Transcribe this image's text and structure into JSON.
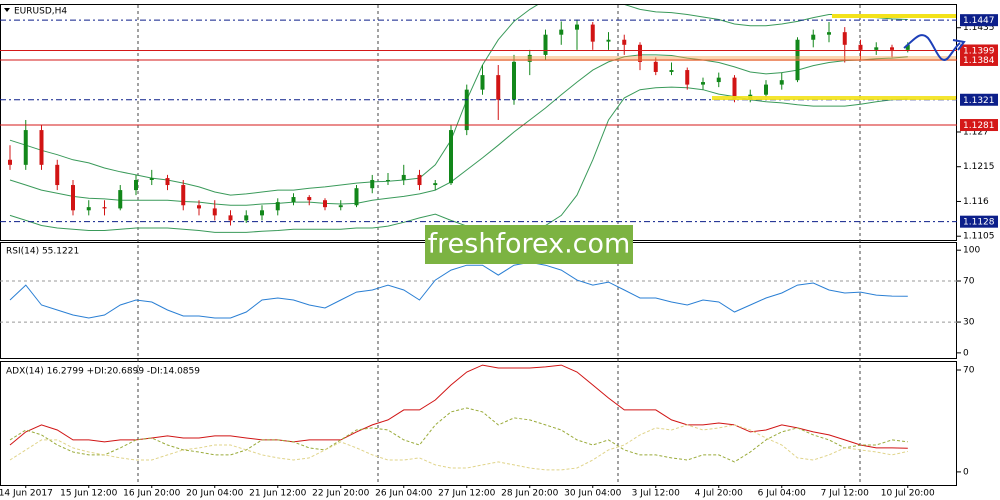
{
  "watermark": "freshforex.com",
  "chart_data": [
    {
      "type": "candlestick",
      "title": "EURUSD,H4",
      "categories": [
        null,
        "14 Jun 2017",
        null,
        null,
        null,
        "15 Jun 12:00",
        null,
        null,
        null,
        "16 Jun 20:00",
        null,
        null,
        null,
        "20 Jun 04:00",
        null,
        null,
        null,
        "21 Jun 12:00",
        null,
        null,
        null,
        "22 Jun 20:00",
        null,
        null,
        null,
        "26 Jun 04:00",
        null,
        null,
        null,
        "27 Jun 12:00",
        null,
        null,
        null,
        "28 Jun 20:00",
        null,
        null,
        null,
        "30 Jun 04:00",
        null,
        null,
        null,
        "3 Jul 12:00",
        null,
        null,
        null,
        "4 Jul 20:00",
        null,
        null,
        null,
        "6 Jul 04:00",
        null,
        null,
        null,
        "7 Jul 12:00",
        null,
        null,
        null,
        "10 Jul 20:00"
      ],
      "open": [
        1.1226,
        1.1218,
        1.1273,
        1.1218,
        1.1186,
        1.1146,
        1.1151,
        1.1149,
        1.1178,
        1.1194,
        1.1197,
        1.1186,
        1.1154,
        1.1149,
        1.1138,
        1.113,
        1.1138,
        1.1146,
        1.1159,
        1.1167,
        1.1162,
        1.1151,
        1.1154,
        1.1181,
        1.1194,
        1.1194,
        1.1202,
        1.1186,
        1.1189,
        1.1273,
        1.1337,
        1.136,
        1.1321,
        1.1381,
        1.1392,
        1.1424,
        1.1432,
        1.144,
        1.1413,
        1.1416,
        1.1408,
        1.1381,
        1.1365,
        1.1368,
        1.1345,
        1.1349,
        1.1356,
        1.1321,
        1.1329,
        1.1345,
        1.1352,
        1.1416,
        1.1424,
        1.1428,
        1.1408,
        1.14,
        1.1404,
        1.14
      ],
      "high": [
        1.1249,
        1.1289,
        1.1281,
        1.1226,
        1.1194,
        1.1162,
        1.1162,
        1.1186,
        1.1202,
        1.121,
        1.1202,
        1.1194,
        1.1162,
        1.1162,
        1.1146,
        1.1146,
        1.1154,
        1.1165,
        1.1173,
        1.117,
        1.1165,
        1.1162,
        1.1186,
        1.1202,
        1.1205,
        1.1218,
        1.121,
        1.1194,
        1.1281,
        1.1345,
        1.1376,
        1.1376,
        1.1392,
        1.14,
        1.1432,
        1.1445,
        1.1448,
        1.1444,
        1.1428,
        1.1424,
        1.1412,
        1.1388,
        1.138,
        1.1372,
        1.1356,
        1.1364,
        1.136,
        1.1337,
        1.1352,
        1.1364,
        1.142,
        1.1432,
        1.1444,
        1.1436,
        1.1416,
        1.1412,
        1.1408,
        1.1412
      ],
      "low": [
        1.121,
        1.121,
        1.121,
        1.1178,
        1.1138,
        1.1138,
        1.1138,
        1.1146,
        1.117,
        1.1186,
        1.1178,
        1.1146,
        1.1138,
        1.113,
        1.1122,
        1.1126,
        1.113,
        1.1138,
        1.1154,
        1.1154,
        1.1146,
        1.1146,
        1.1151,
        1.1173,
        1.1186,
        1.1186,
        1.1178,
        1.1178,
        1.1186,
        1.1265,
        1.1329,
        1.1289,
        1.1313,
        1.136,
        1.1384,
        1.1408,
        1.14,
        1.14,
        1.14,
        1.1392,
        1.1368,
        1.136,
        1.136,
        1.1337,
        1.1337,
        1.1341,
        1.1317,
        1.1317,
        1.1325,
        1.1337,
        1.1349,
        1.1404,
        1.1412,
        1.138,
        1.1384,
        1.1392,
        1.1388,
        1.1396
      ],
      "close": [
        1.1218,
        1.1273,
        1.1218,
        1.1186,
        1.1146,
        1.1151,
        1.1149,
        1.1178,
        1.1194,
        1.1197,
        1.1186,
        1.1154,
        1.1149,
        1.1138,
        1.113,
        1.1138,
        1.1146,
        1.1159,
        1.1167,
        1.1162,
        1.1151,
        1.1154,
        1.1181,
        1.1194,
        1.1194,
        1.1202,
        1.1186,
        1.1189,
        1.1273,
        1.1337,
        1.136,
        1.1321,
        1.1381,
        1.1392,
        1.1424,
        1.1432,
        1.144,
        1.1413,
        1.1416,
        1.1408,
        1.1381,
        1.1365,
        1.1368,
        1.1345,
        1.1349,
        1.1356,
        1.1321,
        1.1329,
        1.1345,
        1.1352,
        1.1416,
        1.1424,
        1.1428,
        1.1408,
        1.14,
        1.1404,
        1.14,
        1.1408
      ],
      "up_color": "#12871a",
      "down_color": "#d11414",
      "overlays": [
        {
          "color": "#3a9a5a",
          "values": [
            1.1257,
            1.1249,
            1.1241,
            1.1234,
            1.1226,
            1.1221,
            1.1213,
            1.1207,
            1.1202,
            1.1197,
            1.1194,
            1.1189,
            1.1183,
            1.1175,
            1.117,
            1.1172,
            1.1175,
            1.1178,
            1.1178,
            1.1181,
            1.1183,
            1.1186,
            1.1189,
            1.1191,
            1.1192,
            1.1194,
            1.1197,
            1.1218,
            1.1257,
            1.1321,
            1.1376,
            1.1416,
            1.1445,
            1.1464,
            1.1479,
            1.1492,
            1.1495,
            1.1492,
            1.1484,
            1.1472,
            1.1464,
            1.146,
            1.1459,
            1.1456,
            1.1452,
            1.1448,
            1.1441,
            1.1438,
            1.1438,
            1.1441,
            1.1445,
            1.1451,
            1.1456,
            1.1456,
            1.1452,
            1.1451,
            1.1449,
            1.1448
          ]
        },
        {
          "color": "#3a9a5a",
          "values": [
            1.1194,
            1.1186,
            1.1178,
            1.1173,
            1.1168,
            1.1165,
            1.1164,
            1.1162,
            1.1162,
            1.1162,
            1.1162,
            1.116,
            1.1159,
            1.1156,
            1.1154,
            1.1154,
            1.1156,
            1.1157,
            1.1159,
            1.1159,
            1.1157,
            1.1156,
            1.1157,
            1.1162,
            1.1165,
            1.1168,
            1.1172,
            1.1178,
            1.1191,
            1.121,
            1.1229,
            1.1249,
            1.127,
            1.1289,
            1.1308,
            1.1329,
            1.1349,
            1.1368,
            1.1381,
            1.1389,
            1.1392,
            1.1392,
            1.1391,
            1.1387,
            1.1384,
            1.138,
            1.1373,
            1.1365,
            1.1362,
            1.1364,
            1.1368,
            1.1375,
            1.138,
            1.1383,
            1.1384,
            1.1386,
            1.1387,
            1.1389
          ]
        },
        {
          "color": "#3a9a5a",
          "values": [
            1.1138,
            1.113,
            1.1122,
            1.1118,
            1.1116,
            1.1114,
            1.1114,
            1.1116,
            1.1118,
            1.1118,
            1.1118,
            1.1116,
            1.1114,
            1.1111,
            1.1111,
            1.1111,
            1.1113,
            1.1114,
            1.1116,
            1.1116,
            1.1116,
            1.1116,
            1.1118,
            1.1118,
            1.1121,
            1.1127,
            1.1134,
            1.114,
            1.113,
            1.1121,
            1.1114,
            1.1111,
            1.1111,
            1.1114,
            1.1122,
            1.1138,
            1.117,
            1.1226,
            1.1289,
            1.1324,
            1.1337,
            1.134,
            1.1341,
            1.134,
            1.1337,
            1.133,
            1.1326,
            1.1321,
            1.1318,
            1.1316,
            1.1313,
            1.1311,
            1.1311,
            1.1311,
            1.1314,
            1.1318,
            1.1321,
            1.1322
          ]
        }
      ],
      "levels": [
        {
          "value": 1.1447,
          "color": "#0c1f8a",
          "dash": true
        },
        {
          "value": 1.1399,
          "color": "#d41818",
          "dash": false
        },
        {
          "value": 1.1384,
          "color": "#d41818",
          "dash": false
        },
        {
          "value": 1.1321,
          "color": "#0c1f8a",
          "dash": true
        },
        {
          "value": 1.1281,
          "color": "#d41818",
          "dash": false
        },
        {
          "value": 1.1128,
          "color": "#0c1f8a",
          "dash": true
        }
      ],
      "ylim": [
        1.1099,
        1.1471
      ],
      "yticks": [
        1.1435,
        1.127,
        1.1215,
        1.116,
        1.1105
      ]
    },
    {
      "type": "line",
      "title": "RSI(14) 55.1221",
      "series": [
        {
          "color": "#2a7fd4",
          "dash": false,
          "values": [
            51.5,
            66,
            46.6,
            41.7,
            36.9,
            34,
            36.9,
            46.6,
            51.5,
            49.5,
            41.7,
            35.9,
            35.9,
            34,
            34,
            39.8,
            51.5,
            53.4,
            51.5,
            46.6,
            43.7,
            51.5,
            59.2,
            61.2,
            66,
            61.2,
            51.5,
            70.9,
            80.6,
            85.4,
            85.4,
            75.7,
            85.4,
            88.3,
            85.4,
            80.6,
            70.9,
            66,
            68.9,
            61.2,
            53.4,
            53.4,
            49.5,
            46.6,
            51.5,
            49.5,
            39.8,
            46.6,
            53.4,
            58.3,
            66,
            68,
            61.2,
            58.3,
            59.2,
            56.3,
            55.3,
            55.1
          ]
        }
      ],
      "ylim": [
        -5,
        107
      ],
      "yticks": [
        0,
        30,
        70,
        100
      ]
    },
    {
      "type": "line",
      "title": "ADX(14) 16.2799 +DI:20.6899 -DI:14.0859",
      "series": [
        {
          "color": "#d01414",
          "dash": false,
          "values": [
            18.5,
            27.5,
            32.3,
            28.8,
            22,
            22,
            20.6,
            22,
            22,
            23.3,
            24.7,
            23.3,
            23.3,
            24.7,
            24.7,
            23.3,
            22,
            22,
            20.6,
            22,
            22,
            22,
            27.5,
            32.3,
            35.7,
            42.6,
            42.6,
            49.4,
            59.7,
            68.6,
            73.4,
            71.4,
            71.4,
            71.4,
            72.1,
            73.4,
            68.6,
            59.7,
            50.8,
            42.6,
            42.6,
            42.6,
            35.7,
            32.3,
            32.3,
            33.6,
            32.3,
            27.5,
            28.8,
            32.3,
            30.2,
            27.5,
            25.4,
            22,
            18.5,
            16.5,
            16.5,
            16.3
          ]
        },
        {
          "color": "#9aab3a",
          "dash": true,
          "values": [
            22,
            28.8,
            25.4,
            18.5,
            13.7,
            11.7,
            11.7,
            16.5,
            22,
            23.3,
            18.5,
            15.1,
            13.7,
            11.7,
            11.7,
            15.1,
            22,
            22,
            20.6,
            16.5,
            15.1,
            22,
            28.8,
            30.2,
            28.8,
            22,
            18.5,
            32.3,
            41.2,
            43.9,
            41.2,
            32.3,
            37.1,
            35.7,
            32.3,
            28.8,
            22,
            18.5,
            22,
            15.1,
            11.7,
            11.7,
            9.6,
            8.2,
            11.7,
            11.7,
            6.9,
            13.7,
            22,
            27.5,
            30.2,
            25.4,
            22,
            16.5,
            18.5,
            18.5,
            22,
            20.7
          ]
        },
        {
          "color": "#e0d48a",
          "dash": true,
          "values": [
            8.2,
            15.1,
            22,
            22,
            16.5,
            13.7,
            11.7,
            9.6,
            8.2,
            8.2,
            11.7,
            15.1,
            16.5,
            18.5,
            18.5,
            15.1,
            11.7,
            9.6,
            8.2,
            9.6,
            15.1,
            20.6,
            16.5,
            11.7,
            8.2,
            8.2,
            9.6,
            4.8,
            2.7,
            2.7,
            4.8,
            6.9,
            4.8,
            2.7,
            1.4,
            1.4,
            2.7,
            8.2,
            15.1,
            18.5,
            25.4,
            30.2,
            28.8,
            32.3,
            28.8,
            30.2,
            32.3,
            28.8,
            23.3,
            18.5,
            9.6,
            8.2,
            11.7,
            16.5,
            15.1,
            13.7,
            11.7,
            14.1
          ]
        }
      ],
      "ylim": [
        -9,
        75.5
      ],
      "yticks": [
        0,
        70
      ]
    }
  ]
}
